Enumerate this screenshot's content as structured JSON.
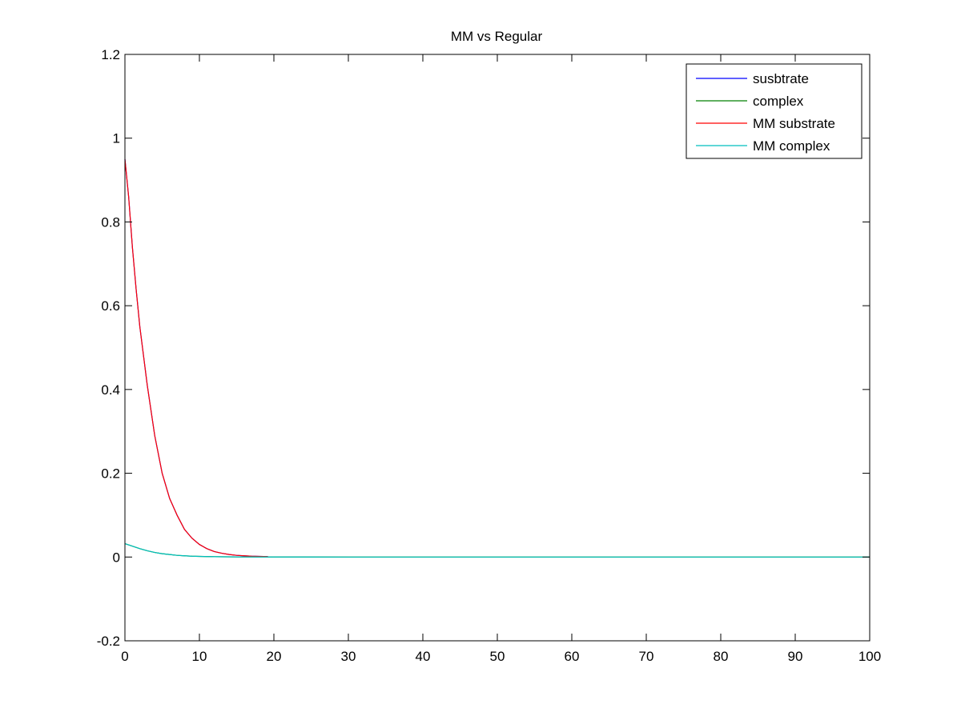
{
  "chart_data": {
    "type": "line",
    "title": "MM vs Regular",
    "xlabel": "",
    "ylabel": "",
    "xlim": [
      0,
      100
    ],
    "ylim": [
      -0.2,
      1.2
    ],
    "xticks": [
      0,
      10,
      20,
      30,
      40,
      50,
      60,
      70,
      80,
      90,
      100
    ],
    "yticks": [
      -0.2,
      0,
      0.2,
      0.4,
      0.6,
      0.8,
      1,
      1.2
    ],
    "xtick_labels": [
      "0",
      "10",
      "20",
      "30",
      "40",
      "50",
      "60",
      "70",
      "80",
      "90",
      "100"
    ],
    "ytick_labels": [
      "-0.2",
      "0",
      "0.2",
      "0.4",
      "0.6",
      "0.8",
      "1",
      "1.2"
    ],
    "grid": false,
    "legend_position": "top-right",
    "series": [
      {
        "name": "susbtrate",
        "color": "#0000ff",
        "x": [
          0,
          0.5,
          1,
          1.5,
          2,
          3,
          4,
          5,
          6,
          7,
          8,
          9,
          10,
          11,
          12,
          13,
          14,
          15,
          16,
          17,
          18,
          19.2
        ],
        "y": [
          0.95,
          0.86,
          0.74,
          0.64,
          0.55,
          0.41,
          0.29,
          0.2,
          0.14,
          0.1,
          0.066,
          0.045,
          0.03,
          0.02,
          0.013,
          0.009,
          0.006,
          0.004,
          0.003,
          0.002,
          0.0015,
          0.001
        ]
      },
      {
        "name": "complex",
        "color": "#008000",
        "x": [
          0,
          1,
          2,
          3,
          4,
          5,
          6,
          7,
          8,
          9,
          10,
          12,
          15,
          20,
          30,
          50,
          100
        ],
        "y": [
          0.032,
          0.026,
          0.02,
          0.015,
          0.011,
          0.008,
          0.006,
          0.004,
          0.003,
          0.002,
          0.0015,
          0.0008,
          0.0003,
          0.0001,
          0,
          0,
          0
        ]
      },
      {
        "name": "MM substrate",
        "color": "#ff0000",
        "x": [
          0,
          0.5,
          1,
          1.5,
          2,
          3,
          4,
          5,
          6,
          7,
          8,
          9,
          10,
          11,
          12,
          13,
          14,
          15,
          16,
          17,
          18,
          19.2
        ],
        "y": [
          0.95,
          0.86,
          0.74,
          0.64,
          0.55,
          0.41,
          0.29,
          0.2,
          0.14,
          0.1,
          0.066,
          0.045,
          0.03,
          0.02,
          0.013,
          0.009,
          0.006,
          0.004,
          0.003,
          0.002,
          0.0015,
          0.001
        ]
      },
      {
        "name": "MM complex",
        "color": "#00bfbf",
        "x": [
          0,
          1,
          2,
          3,
          4,
          5,
          6,
          7,
          8,
          9,
          10,
          12,
          15,
          20,
          30,
          50,
          100
        ],
        "y": [
          0.032,
          0.026,
          0.02,
          0.015,
          0.011,
          0.008,
          0.006,
          0.004,
          0.003,
          0.002,
          0.0015,
          0.0008,
          0.0003,
          0.0001,
          0,
          0,
          0
        ]
      }
    ]
  }
}
